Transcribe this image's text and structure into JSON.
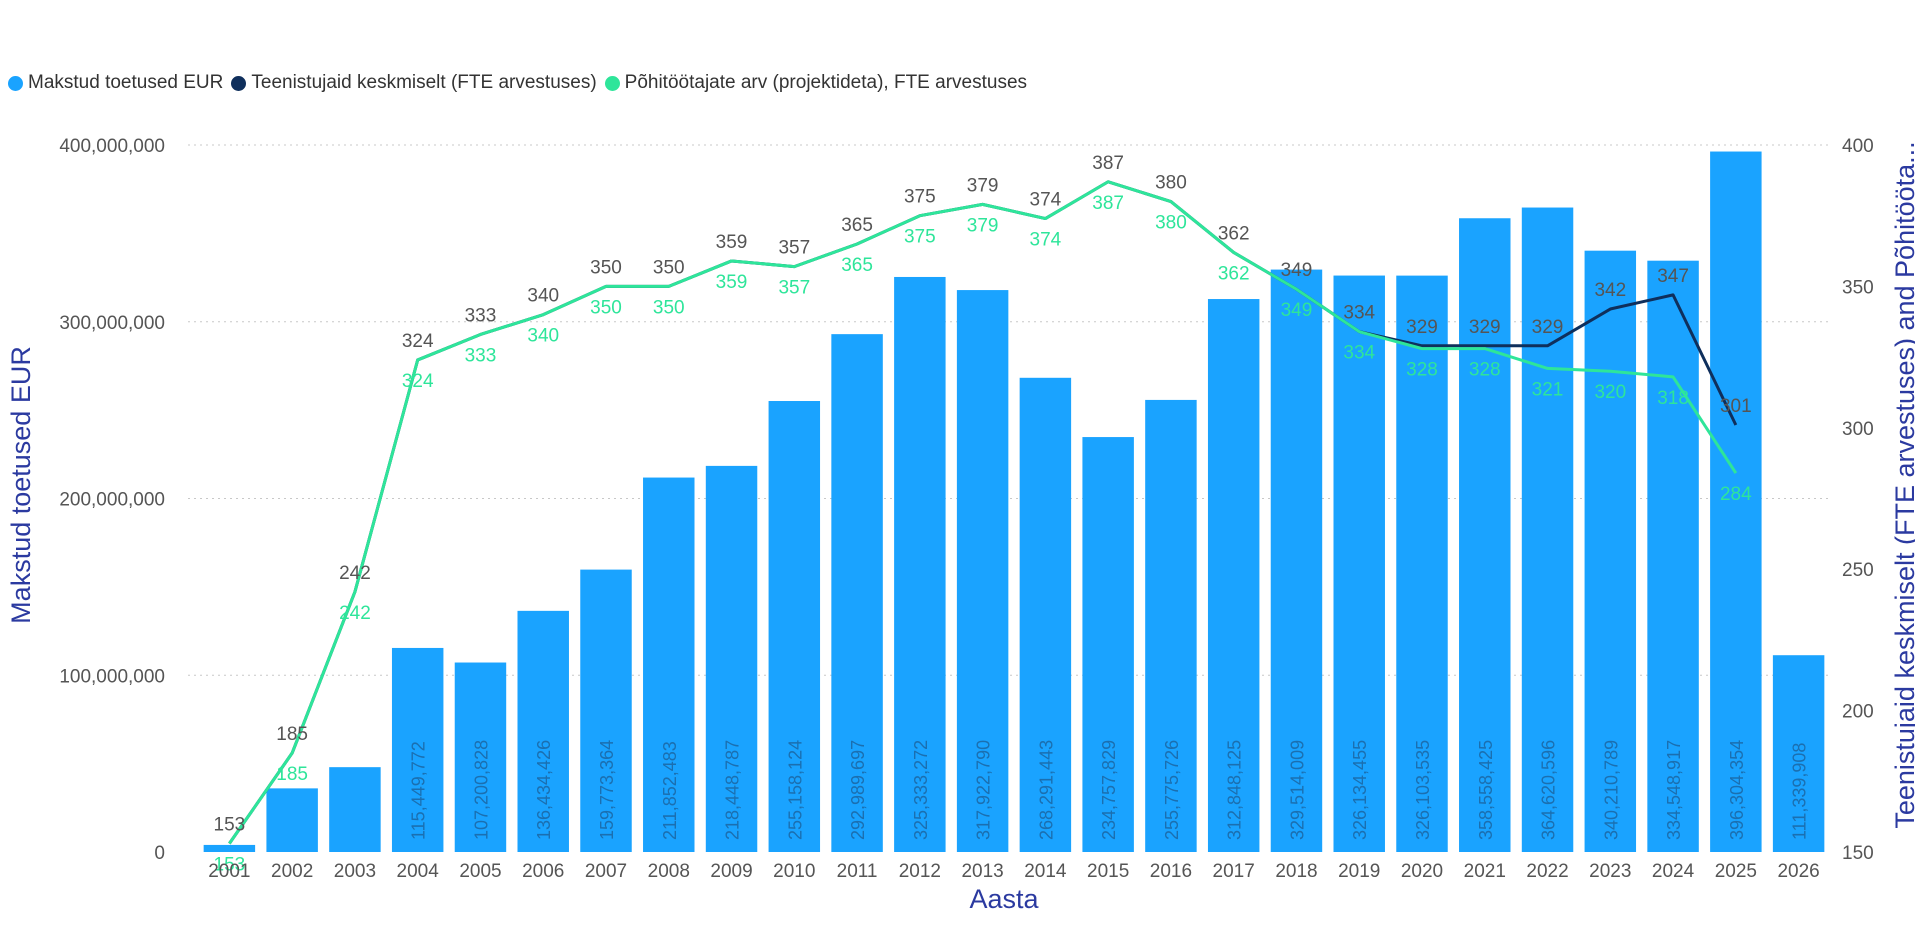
{
  "chart_data": {
    "type": "bar+line",
    "x_title": "Aasta",
    "y_left_title": "Makstud toetused EUR",
    "y_right_title": "Teenistujaid keskmiselt (FTE arvestuses) and Põhitööta...",
    "categories": [
      "2001",
      "2002",
      "2003",
      "2004",
      "2005",
      "2006",
      "2007",
      "2008",
      "2009",
      "2010",
      "2011",
      "2012",
      "2013",
      "2014",
      "2015",
      "2016",
      "2017",
      "2018",
      "2019",
      "2020",
      "2021",
      "2022",
      "2023",
      "2024",
      "2025",
      "2026"
    ],
    "y_left_range": [
      0,
      400000000
    ],
    "y_left_ticks": [
      0,
      100000000,
      200000000,
      300000000,
      400000000
    ],
    "y_left_tick_labels": [
      "0",
      "100,000,000",
      "200,000,000",
      "300,000,000",
      "400,000,000"
    ],
    "y_right_range": [
      150,
      400
    ],
    "y_right_ticks": [
      150,
      200,
      250,
      300,
      350,
      400
    ],
    "y_right_tick_labels": [
      "150",
      "200",
      "250",
      "300",
      "350",
      "400"
    ],
    "gridlines": true,
    "legend_position": "top-left",
    "series": [
      {
        "name": "Makstud toetused EUR",
        "type": "bar",
        "axis": "left",
        "color": "#1aa3ff",
        "values": [
          4000000,
          36000000,
          48000000,
          115449772,
          107200828,
          136434426,
          159773364,
          211852483,
          218448787,
          255158124,
          292989697,
          325333272,
          317922790,
          268291443,
          234757829,
          255775726,
          312848125,
          329514009,
          326134455,
          326103535,
          358558425,
          364620596,
          340210789,
          334548917,
          396304354,
          111339908
        ],
        "labels": [
          "",
          "",
          "",
          "115,449,772",
          "107,200,828",
          "136,434,426",
          "159,773,364",
          "211,852,483",
          "218,448,787",
          "255,158,124",
          "292,989,697",
          "325,333,272",
          "317,922,790",
          "268,291,443",
          "234,757,829",
          "255,775,726",
          "312,848,125",
          "329,514,009",
          "326,134,455",
          "326,103,535",
          "358,558,425",
          "364,620,596",
          "340,210,789",
          "334,548,917",
          "396,304,354",
          "111,339,908"
        ]
      },
      {
        "name": "Teenistujaid keskmiselt (FTE arvestuses)",
        "type": "line",
        "axis": "right",
        "color": "#0f2f5c",
        "values": [
          153,
          185,
          242,
          324,
          333,
          340,
          350,
          350,
          359,
          357,
          365,
          375,
          379,
          374,
          387,
          380,
          362,
          349,
          334,
          329,
          329,
          329,
          342,
          347,
          301,
          null
        ],
        "labels": [
          "153",
          "185",
          "242",
          "324",
          "333",
          "340",
          "350",
          "350",
          "359",
          "357",
          "365",
          "375",
          "379",
          "374",
          "387",
          "380",
          "362",
          "349",
          "334",
          "329",
          "329",
          "329",
          "342",
          "347",
          "301",
          ""
        ]
      },
      {
        "name": "Põhitöötajate arv (projektideta), FTE arvestuses",
        "type": "line",
        "axis": "right",
        "color": "#2ee59a",
        "values": [
          153,
          185,
          242,
          324,
          333,
          340,
          350,
          350,
          359,
          357,
          365,
          375,
          379,
          374,
          387,
          380,
          362,
          349,
          334,
          328,
          328,
          321,
          320,
          318,
          284,
          null
        ],
        "labels": [
          "153",
          "185",
          "242",
          "324",
          "333",
          "340",
          "350",
          "350",
          "359",
          "357",
          "365",
          "375",
          "379",
          "374",
          "387",
          "380",
          "362",
          "349",
          "334",
          "328",
          "328",
          "321",
          "320",
          "318",
          "284",
          ""
        ]
      }
    ]
  },
  "legend": {
    "items": [
      {
        "label": "Makstud toetused EUR",
        "color": "#1aa3ff"
      },
      {
        "label": "Teenistujaid keskmiselt (FTE arvestuses)",
        "color": "#0f2f5c"
      },
      {
        "label": "Põhitöötajate arv (projektideta), FTE arvestuses",
        "color": "#2ee59a"
      }
    ]
  },
  "colors": {
    "axis_title": "#2b3aa0",
    "tick_text": "#555555",
    "grid": "#c8c8c8",
    "label_dark": "#555555",
    "label_light_on_bar": "#1b6fb0"
  }
}
